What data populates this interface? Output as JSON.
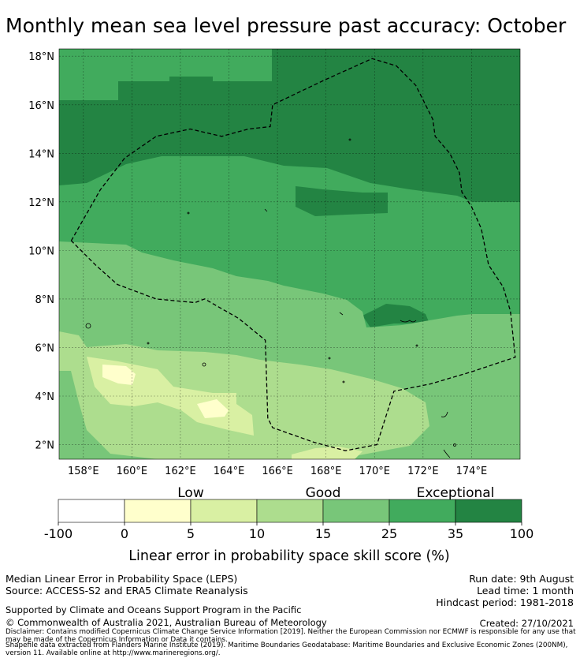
{
  "title": "Monthly mean sea level pressure past accuracy: October",
  "map": {
    "lon_range": [
      157,
      176
    ],
    "lat_range": [
      1.4,
      18.3
    ],
    "lat_ticks": [
      {
        "value": 18,
        "label": "18°N"
      },
      {
        "value": 16,
        "label": "16°N"
      },
      {
        "value": 14,
        "label": "14°N"
      },
      {
        "value": 12,
        "label": "12°N"
      },
      {
        "value": 10,
        "label": "10°N"
      },
      {
        "value": 8,
        "label": "8°N"
      },
      {
        "value": 6,
        "label": "6°N"
      },
      {
        "value": 4,
        "label": "4°N"
      },
      {
        "value": 2,
        "label": "2°N"
      }
    ],
    "lon_ticks": [
      {
        "value": 158,
        "label": "158°E"
      },
      {
        "value": 160,
        "label": "160°E"
      },
      {
        "value": 162,
        "label": "162°E"
      },
      {
        "value": 164,
        "label": "164°E"
      },
      {
        "value": 166,
        "label": "166°E"
      },
      {
        "value": 168,
        "label": "168°E"
      },
      {
        "value": 170,
        "label": "170°E"
      },
      {
        "value": 172,
        "label": "172°E"
      },
      {
        "value": 174,
        "label": "174°E"
      }
    ],
    "grid": true,
    "eez_boundary": [
      [
        157.5,
        10.4
      ],
      [
        157.9,
        11.1
      ],
      [
        158.7,
        12.5
      ],
      [
        159.7,
        13.8
      ],
      [
        161.0,
        14.7
      ],
      [
        162.4,
        15.0
      ],
      [
        163.7,
        14.7
      ],
      [
        164.8,
        15.0
      ],
      [
        165.7,
        15.1
      ],
      [
        165.8,
        16.0
      ],
      [
        167.9,
        17.0
      ],
      [
        169.9,
        17.9
      ],
      [
        170.9,
        17.6
      ],
      [
        171.7,
        16.8
      ],
      [
        172.4,
        15.4
      ],
      [
        172.5,
        14.7
      ],
      [
        173.1,
        14.0
      ],
      [
        173.5,
        13.2
      ],
      [
        173.6,
        12.4
      ],
      [
        174.0,
        11.8
      ],
      [
        174.4,
        10.9
      ],
      [
        174.7,
        9.4
      ],
      [
        175.3,
        8.5
      ],
      [
        175.6,
        7.5
      ],
      [
        175.8,
        5.6
      ],
      [
        174.0,
        5.0
      ],
      [
        172.3,
        4.5
      ],
      [
        170.8,
        4.2
      ],
      [
        170.1,
        2.0
      ],
      [
        168.8,
        1.75
      ],
      [
        167.5,
        2.1
      ],
      [
        165.8,
        2.7
      ],
      [
        165.6,
        3.1
      ],
      [
        165.5,
        6.3
      ],
      [
        164.4,
        7.2
      ],
      [
        163.0,
        8.0
      ],
      [
        162.6,
        7.85
      ],
      [
        161.0,
        8.0
      ],
      [
        159.4,
        8.6
      ],
      [
        158.5,
        9.4
      ],
      [
        157.5,
        10.4
      ]
    ]
  },
  "colorbar": {
    "categories": [
      {
        "label": "Low",
        "at": 5
      },
      {
        "label": "Good",
        "at": 15
      },
      {
        "label": "Exceptional",
        "at": 35
      }
    ],
    "bins": [
      {
        "from": -100,
        "to": 0,
        "color": "#ffffff"
      },
      {
        "from": 0,
        "to": 5,
        "color": "#ffffcc"
      },
      {
        "from": 5,
        "to": 10,
        "color": "#d9f0a3"
      },
      {
        "from": 10,
        "to": 15,
        "color": "#addd8e"
      },
      {
        "from": 15,
        "to": 25,
        "color": "#78c679"
      },
      {
        "from": 25,
        "to": 35,
        "color": "#41ab5d"
      },
      {
        "from": 35,
        "to": 100,
        "color": "#238443"
      }
    ],
    "tick_labels": [
      "-100",
      "0",
      "5",
      "10",
      "15",
      "25",
      "35",
      "100"
    ],
    "label": "Linear error in probability space skill score (%)"
  },
  "info": {
    "method": "Median Linear Error in Probability Space (LEPS)",
    "source": "Source: ACCESS-S2 and ERA5 Climate Reanalysis",
    "run_date": "Run date: 9th August",
    "lead_time": "Lead time: 1 month",
    "hindcast": "Hindcast period: 1981-2018",
    "support": "Supported by Climate and Oceans Support Program in the Pacific",
    "copyright": "© Commonwealth of Australia 2021, Australian Bureau of Meteorology",
    "created": "Created: 27/10/2021",
    "disclaimer": "Disclaimer: Contains modified Copernicus Climate Change Service Information [2019]. Neither the European Commission nor ECMWF is responsible for any use that may be made of the Copernicus Information or Data it contains.",
    "shapefile": "Shapefile data extracted from Flanders Marine Institute (2019). Maritime Boundaries Geodatabase: Maritime Boundaries and Exclusive Economic Zones (200NM), version 11. Available online at http://www.marineregions.org/."
  }
}
